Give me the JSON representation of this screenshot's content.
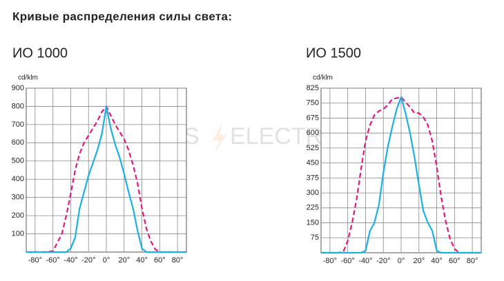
{
  "heading": "Кривые распределения силы света:",
  "watermark": [
    "ROS",
    "ELECTRIC"
  ],
  "chart_data": [
    {
      "type": "line",
      "title": "ИО 1000",
      "y_label": "cd/klm",
      "xlim": [
        -90,
        90
      ],
      "ylim": [
        0,
        900
      ],
      "xticks": [
        {
          "value": -80,
          "label": "-80°"
        },
        {
          "value": -60,
          "label": "-60°"
        },
        {
          "value": -40,
          "label": "-40°"
        },
        {
          "value": -20,
          "label": "-20°"
        },
        {
          "value": 0,
          "label": "0°"
        },
        {
          "value": 20,
          "label": "20°"
        },
        {
          "value": 40,
          "label": "40°"
        },
        {
          "value": 60,
          "label": "60°"
        },
        {
          "value": 80,
          "label": "80°"
        }
      ],
      "yticks": [
        100,
        200,
        300,
        400,
        500,
        600,
        700,
        800,
        900
      ],
      "grid": true,
      "series": [
        {
          "color": "#e0197d",
          "dashed": true,
          "x": [
            -90,
            -70,
            -60,
            -50,
            -45,
            -40,
            -35,
            -30,
            -25,
            -20,
            -15,
            -10,
            -5,
            0,
            5,
            10,
            15,
            20,
            25,
            30,
            35,
            40,
            45,
            50,
            55,
            60,
            90
          ],
          "values": [
            0,
            0,
            5,
            100,
            200,
            320,
            450,
            540,
            600,
            640,
            680,
            720,
            770,
            800,
            750,
            700,
            660,
            620,
            560,
            480,
            380,
            240,
            130,
            60,
            15,
            0,
            0
          ]
        },
        {
          "color": "#1ab0e0",
          "dashed": false,
          "x": [
            -90,
            -45,
            -40,
            -35,
            -30,
            -25,
            -20,
            -15,
            -10,
            -5,
            0,
            5,
            10,
            15,
            20,
            25,
            30,
            35,
            40,
            45,
            90
          ],
          "values": [
            0,
            0,
            20,
            80,
            240,
            330,
            420,
            490,
            560,
            650,
            800,
            680,
            590,
            520,
            430,
            330,
            240,
            120,
            20,
            0,
            0
          ]
        }
      ]
    },
    {
      "type": "line",
      "title": "ИО 1500",
      "y_label": "cd/klm",
      "xlim": [
        -90,
        90
      ],
      "ylim": [
        0,
        825
      ],
      "xticks": [
        {
          "value": -80,
          "label": "-80°"
        },
        {
          "value": -60,
          "label": "-60°"
        },
        {
          "value": -40,
          "label": "-40°"
        },
        {
          "value": -20,
          "label": "-20°"
        },
        {
          "value": 0,
          "label": "0°"
        },
        {
          "value": 20,
          "label": "20°"
        },
        {
          "value": 40,
          "label": "40°"
        },
        {
          "value": 60,
          "label": "60°"
        },
        {
          "value": 80,
          "label": "80°"
        }
      ],
      "yticks": [
        75,
        150,
        225,
        300,
        375,
        450,
        525,
        600,
        675,
        750,
        825
      ],
      "grid": true,
      "series": [
        {
          "color": "#e0197d",
          "dashed": true,
          "x": [
            -90,
            -70,
            -65,
            -60,
            -55,
            -50,
            -45,
            -40,
            -35,
            -30,
            -25,
            -20,
            -15,
            -10,
            0,
            10,
            15,
            20,
            25,
            30,
            35,
            40,
            45,
            50,
            55,
            60,
            65,
            90
          ],
          "values": [
            0,
            0,
            5,
            60,
            150,
            270,
            420,
            560,
            640,
            690,
            710,
            720,
            740,
            770,
            780,
            730,
            700,
            700,
            680,
            640,
            560,
            430,
            280,
            160,
            70,
            20,
            0,
            0
          ]
        },
        {
          "color": "#1ab0e0",
          "dashed": false,
          "x": [
            -90,
            -45,
            -40,
            -35,
            -30,
            -25,
            -20,
            -15,
            -10,
            -5,
            0,
            5,
            10,
            15,
            20,
            25,
            30,
            35,
            40,
            45,
            90
          ],
          "values": [
            0,
            0,
            10,
            110,
            150,
            240,
            400,
            530,
            630,
            720,
            780,
            700,
            600,
            480,
            340,
            210,
            150,
            110,
            10,
            0,
            0
          ]
        }
      ]
    }
  ]
}
